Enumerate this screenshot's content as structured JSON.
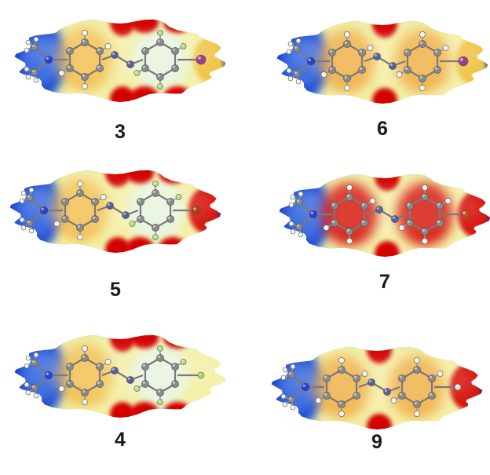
{
  "figure": {
    "panels": [
      {
        "id": "p3",
        "label": "3",
        "terminal_atom": "I",
        "terminal_color": "#9b3d93",
        "ring_substituent": "F",
        "rings": [
          "warm-left",
          "cool-right"
        ]
      },
      {
        "id": "p6",
        "label": "6",
        "terminal_atom": "I",
        "terminal_color": "#9b3d93",
        "ring_substituent": "H",
        "rings": [
          "warm",
          "warm"
        ]
      },
      {
        "id": "p5",
        "label": "5",
        "terminal_atom": "Br",
        "terminal_color": "#b33a12",
        "ring_substituent": "F",
        "rings": [
          "warm-left",
          "cool-right"
        ]
      },
      {
        "id": "p7",
        "label": "7",
        "terminal_atom": "Br",
        "terminal_color": "#c84a10",
        "ring_substituent": "H",
        "rings": [
          "hot",
          "hot"
        ]
      },
      {
        "id": "p4",
        "label": "4",
        "terminal_atom": "F",
        "terminal_color": "#a8d860",
        "ring_substituent": "F",
        "rings": [
          "warm-left",
          "cool-right"
        ]
      },
      {
        "id": "p9",
        "label": "9",
        "terminal_atom": "H",
        "terminal_color": "#e0e0e0",
        "ring_substituent": "H",
        "rings": [
          "warm",
          "warm"
        ]
      }
    ],
    "color_scale": {
      "negative": "#d40000",
      "mid_negative": "#f0a030",
      "neutral": "#f4f0a8",
      "mid_positive": "#7fe0e0",
      "positive": "#0a2ec8"
    },
    "atom_colors": {
      "C": "#8a8a8a",
      "N": "#2a3fd0",
      "H": "#f2f2ee",
      "azo_N": "#5b5e9e"
    }
  }
}
